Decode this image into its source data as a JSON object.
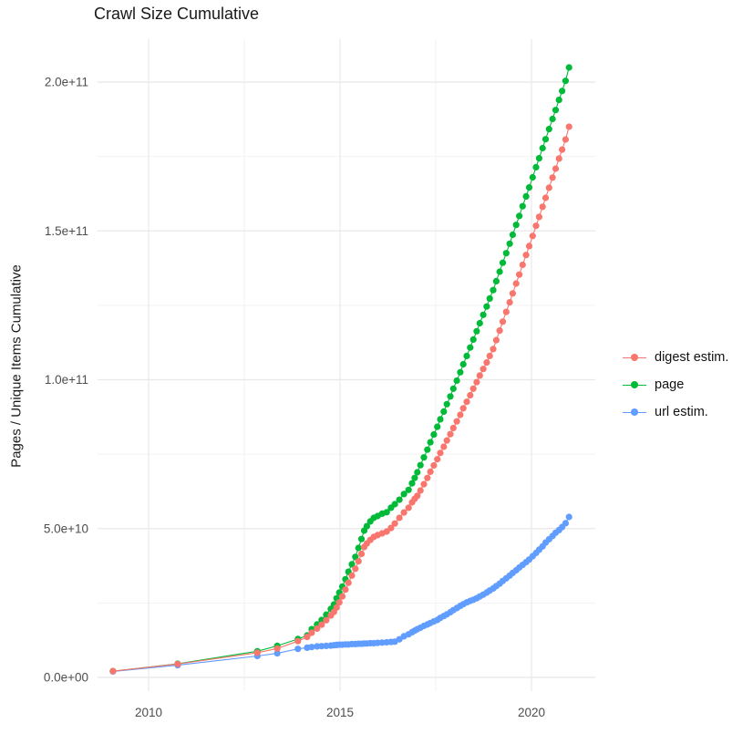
{
  "chart_data": {
    "type": "scatter",
    "title": "Crawl Size Cumulative",
    "legend_position": "right",
    "grid": "major and minor, light gray on white panel",
    "unit_note": "values_billions are pages/unique-items in units of 1e9",
    "x_axis": {
      "label": "",
      "tick_values": [
        2010,
        2015,
        2020
      ],
      "tick_labels": [
        "2010",
        "2015",
        "2020"
      ],
      "minor_tick_values": [
        2012.5,
        2017.5
      ],
      "range": [
        2008.65,
        2021.7
      ]
    },
    "y_axis": {
      "title": "Pages / Unique Items Cumulative",
      "tick_values_billions": [
        0,
        50,
        100,
        150,
        200
      ],
      "tick_labels": [
        "0.0e+00",
        "5.0e+10",
        "1.0e+11",
        "1.5e+11",
        "2.0e+11"
      ],
      "minor_tick_values_billions": [
        25,
        75,
        125,
        175
      ],
      "range_billions": [
        -14,
        219
      ]
    },
    "x_years": [
      2009.07,
      2010.76,
      2012.84,
      2013.36,
      2013.9,
      2014.14,
      2014.26,
      2014.4,
      2014.52,
      2014.64,
      2014.76,
      2014.84,
      2014.91,
      2014.98,
      2015.06,
      2015.14,
      2015.22,
      2015.31,
      2015.4,
      2015.48,
      2015.56,
      2015.63,
      2015.7,
      2015.79,
      2015.88,
      2015.98,
      2016.1,
      2016.22,
      2016.33,
      2016.43,
      2016.55,
      2016.67,
      2016.79,
      2016.88,
      2016.95,
      2017.02,
      2017.1,
      2017.19,
      2017.28,
      2017.36,
      2017.45,
      2017.54,
      2017.62,
      2017.71,
      2017.79,
      2017.88,
      2017.96,
      2018.05,
      2018.14,
      2018.22,
      2018.31,
      2018.4,
      2018.48,
      2018.57,
      2018.65,
      2018.74,
      2018.83,
      2018.91,
      2019.0,
      2019.08,
      2019.17,
      2019.25,
      2019.34,
      2019.43,
      2019.51,
      2019.6,
      2019.68,
      2019.77,
      2019.86,
      2019.94,
      2020.03,
      2020.12,
      2020.2,
      2020.29,
      2020.37,
      2020.46,
      2020.55,
      2020.63,
      2020.72,
      2020.8,
      2020.89,
      2020.98
    ],
    "series": [
      {
        "name": "digest estim.",
        "color": "#F8766D",
        "values_billions": [
          2.1,
          4.5,
          8.3,
          9.7,
          12.2,
          13.6,
          15.0,
          16.4,
          17.7,
          19.2,
          20.8,
          22.0,
          23.5,
          25.2,
          27.2,
          29.5,
          31.8,
          34.2,
          36.5,
          39.0,
          41.5,
          43.8,
          45.0,
          46.2,
          47.2,
          47.8,
          48.4,
          49.0,
          50.2,
          51.7,
          53.6,
          55.4,
          57.0,
          58.8,
          60.0,
          61.0,
          62.8,
          64.9,
          67.0,
          69.1,
          71.2,
          73.3,
          75.4,
          77.5,
          79.6,
          81.7,
          83.8,
          86.0,
          88.2,
          90.4,
          92.6,
          94.8,
          97.0,
          99.2,
          101.4,
          103.6,
          105.8,
          108.0,
          110.3,
          113.3,
          116.5,
          119.5,
          122.8,
          126.0,
          129.0,
          132.3,
          135.3,
          138.6,
          141.9,
          144.9,
          148.3,
          151.7,
          154.7,
          158.1,
          161.1,
          164.5,
          167.9,
          170.9,
          174.3,
          177.3,
          180.7,
          185.0
        ]
      },
      {
        "name": "page",
        "color": "#00BA38",
        "values_billions": [
          2.1,
          4.6,
          8.8,
          10.6,
          12.9,
          14.1,
          16.2,
          17.8,
          19.3,
          21.1,
          23.0,
          24.5,
          26.6,
          28.5,
          30.5,
          33.0,
          35.5,
          38.0,
          40.5,
          43.5,
          46.5,
          49.3,
          50.8,
          52.4,
          53.6,
          54.2,
          55.0,
          55.5,
          57.0,
          58.2,
          59.7,
          61.6,
          63.0,
          65.2,
          67.0,
          68.9,
          71.3,
          73.9,
          76.5,
          79.0,
          81.6,
          84.2,
          86.7,
          89.3,
          91.8,
          94.4,
          97.0,
          99.7,
          102.5,
          105.2,
          108.0,
          110.8,
          113.5,
          116.3,
          119.0,
          121.8,
          124.6,
          127.3,
          130.1,
          133.1,
          136.3,
          139.3,
          142.5,
          145.7,
          148.7,
          152.0,
          155.0,
          158.3,
          161.6,
          164.6,
          168.0,
          171.4,
          174.4,
          177.8,
          180.8,
          184.2,
          187.6,
          190.6,
          194.0,
          197.0,
          200.4,
          204.9
        ]
      },
      {
        "name": "url estim.",
        "color": "#619CFF",
        "values_billions": [
          2.0,
          4.1,
          7.2,
          8.1,
          9.6,
          10.0,
          10.2,
          10.4,
          10.5,
          10.6,
          10.7,
          10.8,
          10.9,
          11.0,
          11.0,
          11.1,
          11.1,
          11.2,
          11.2,
          11.3,
          11.3,
          11.4,
          11.4,
          11.5,
          11.5,
          11.6,
          11.7,
          11.8,
          11.9,
          12.0,
          12.8,
          13.8,
          14.5,
          15.2,
          15.7,
          16.2,
          16.7,
          17.3,
          17.8,
          18.3,
          18.8,
          19.3,
          20.0,
          20.6,
          21.2,
          21.9,
          22.6,
          23.3,
          24.0,
          24.6,
          25.2,
          25.7,
          26.1,
          26.6,
          27.2,
          27.8,
          28.5,
          29.2,
          29.9,
          30.7,
          31.5,
          32.4,
          33.3,
          34.2,
          35.1,
          36.0,
          36.9,
          37.8,
          38.7,
          39.6,
          40.7,
          41.8,
          42.9,
          44.0,
          45.3,
          46.4,
          47.5,
          48.6,
          49.5,
          50.5,
          51.8,
          53.9
        ]
      }
    ]
  }
}
